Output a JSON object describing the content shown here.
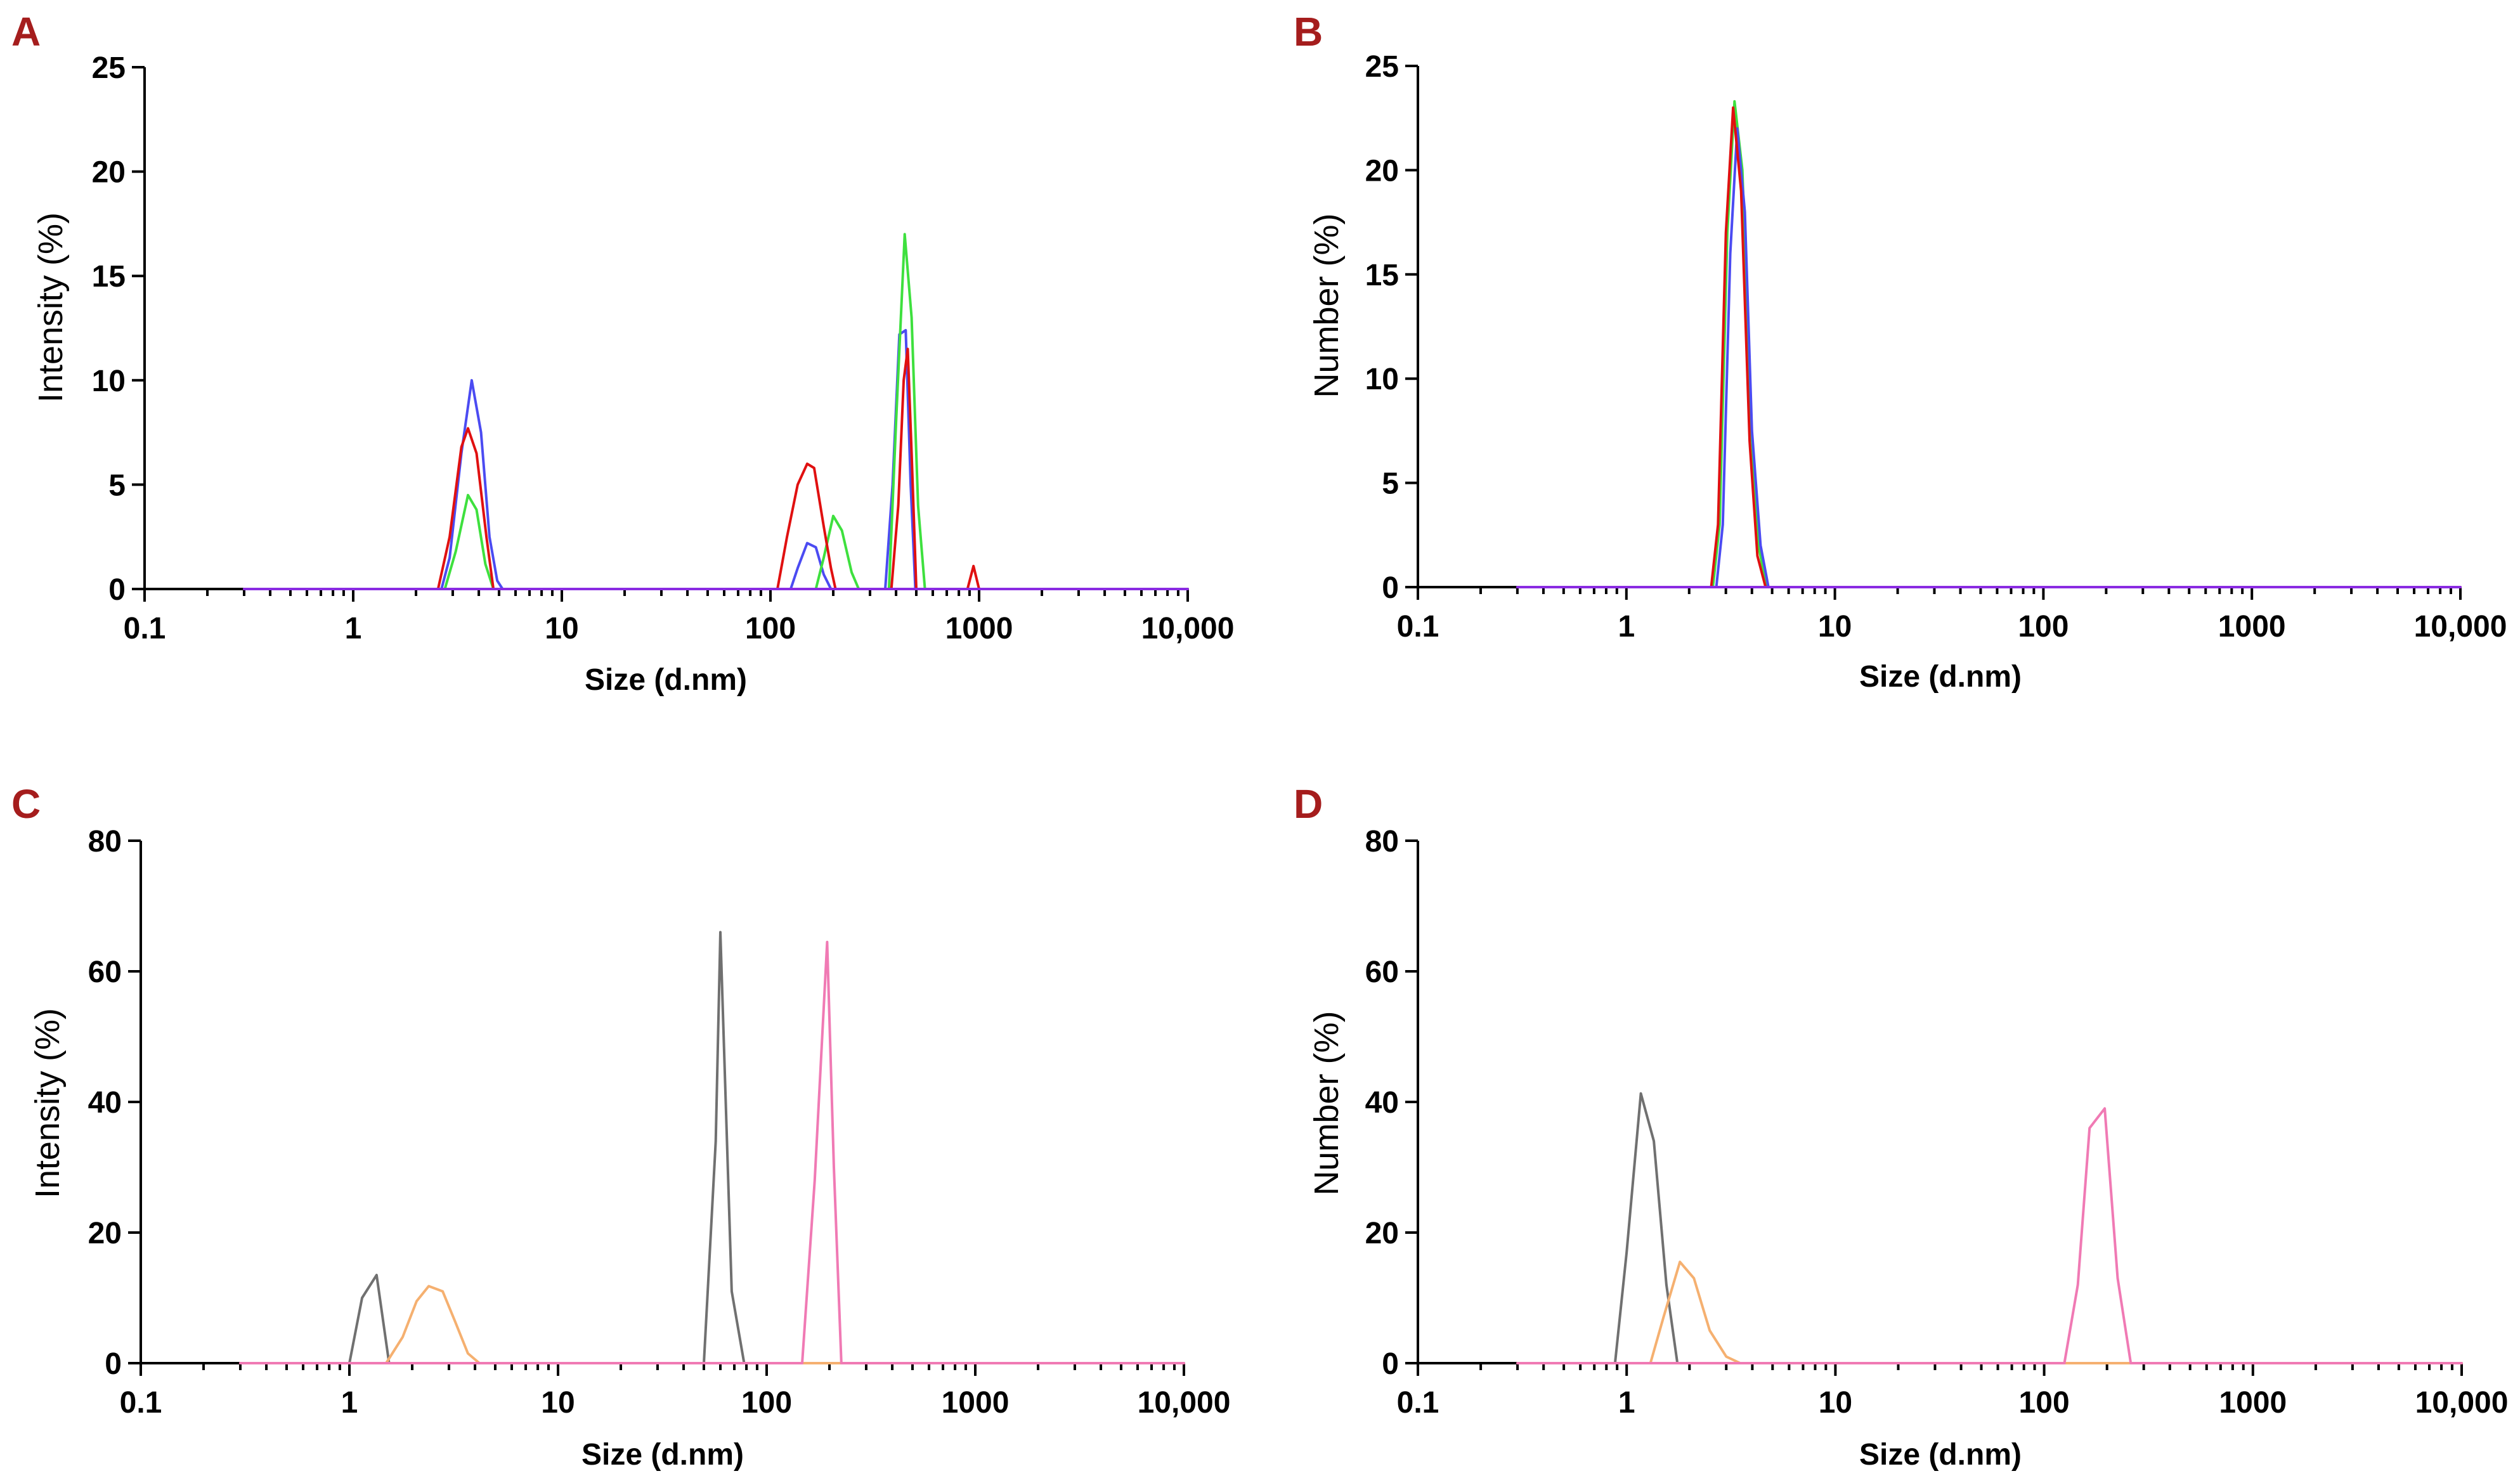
{
  "chart_data": [
    {
      "panel": "A",
      "type": "line",
      "xscale": "log",
      "xlabel": "Size (d.nm)",
      "ylabel": "Intensity (%)",
      "xlim": [
        0.1,
        10000
      ],
      "ylim": [
        0,
        25
      ],
      "xticks": [
        0.1,
        1,
        10,
        100,
        1000,
        10000
      ],
      "xtick_labels": [
        "0.1",
        "1",
        "10",
        "100",
        "1000",
        "10,000"
      ],
      "yticks": [
        0,
        5,
        10,
        15,
        20,
        25
      ],
      "ytick_labels": [
        "0",
        "5",
        "10",
        "15",
        "20",
        "25"
      ],
      "series": [
        {
          "name": "blue",
          "color": "#4b4bf2",
          "points": [
            [
              0.3,
              0
            ],
            [
              2.65,
              0
            ],
            [
              2.9,
              1.5
            ],
            [
              3.3,
              6.5
            ],
            [
              3.7,
              10
            ],
            [
              4.1,
              7.5
            ],
            [
              4.5,
              2.5
            ],
            [
              4.9,
              0.4
            ],
            [
              5.2,
              0
            ],
            [
              125,
              0
            ],
            [
              135,
              1
            ],
            [
              150,
              2.2
            ],
            [
              165,
              2
            ],
            [
              180,
              0.7
            ],
            [
              195,
              0
            ],
            [
              355,
              0
            ],
            [
              385,
              5
            ],
            [
              415,
              12.2
            ],
            [
              445,
              12.4
            ],
            [
              470,
              5
            ],
            [
              495,
              0
            ],
            [
              10000,
              0
            ]
          ]
        },
        {
          "name": "green",
          "color": "#3ee03e",
          "points": [
            [
              0.3,
              0
            ],
            [
              2.75,
              0
            ],
            [
              3.1,
              1.8
            ],
            [
              3.55,
              4.5
            ],
            [
              3.9,
              3.8
            ],
            [
              4.3,
              1.2
            ],
            [
              4.7,
              0
            ],
            [
              165,
              0
            ],
            [
              180,
              1.5
            ],
            [
              200,
              3.5
            ],
            [
              220,
              2.8
            ],
            [
              245,
              0.8
            ],
            [
              265,
              0
            ],
            [
              370,
              0
            ],
            [
              400,
              8
            ],
            [
              440,
              17
            ],
            [
              475,
              13
            ],
            [
              510,
              4
            ],
            [
              550,
              0
            ],
            [
              10000,
              0
            ]
          ]
        },
        {
          "name": "red",
          "color": "#e01010",
          "points": [
            [
              0.3,
              0
            ],
            [
              2.55,
              0
            ],
            [
              2.9,
              2.5
            ],
            [
              3.3,
              6.8
            ],
            [
              3.55,
              7.7
            ],
            [
              3.9,
              6.5
            ],
            [
              4.35,
              2.5
            ],
            [
              4.7,
              0
            ],
            [
              108,
              0
            ],
            [
              120,
              2.5
            ],
            [
              135,
              5
            ],
            [
              150,
              6
            ],
            [
              162,
              5.8
            ],
            [
              180,
              3
            ],
            [
              195,
              1
            ],
            [
              205,
              0
            ],
            [
              380,
              0
            ],
            [
              410,
              4
            ],
            [
              435,
              10
            ],
            [
              455,
              11.5
            ],
            [
              475,
              6.5
            ],
            [
              500,
              0
            ],
            [
              880,
              0
            ],
            [
              940,
              1.1
            ],
            [
              1000,
              0
            ],
            [
              10000,
              0
            ]
          ]
        },
        {
          "name": "purple",
          "color": "#8a2be2",
          "points": [
            [
              0.3,
              0
            ],
            [
              2.5,
              0
            ],
            [
              10000,
              0
            ]
          ]
        }
      ]
    },
    {
      "panel": "B",
      "type": "line",
      "xscale": "log",
      "xlabel": "Size (d.nm)",
      "ylabel": "Number (%)",
      "xlim": [
        0.1,
        10000
      ],
      "ylim": [
        0,
        25
      ],
      "xticks": [
        0.1,
        1,
        10,
        100,
        1000,
        10000
      ],
      "xtick_labels": [
        "0.1",
        "1",
        "10",
        "100",
        "1000",
        "10,000"
      ],
      "yticks": [
        0,
        5,
        10,
        15,
        20,
        25
      ],
      "ytick_labels": [
        "0",
        "5",
        "10",
        "15",
        "20",
        "25"
      ],
      "series": [
        {
          "name": "green",
          "color": "#3ee03e",
          "points": [
            [
              0.3,
              0
            ],
            [
              2.6,
              0
            ],
            [
              2.8,
              3
            ],
            [
              3.05,
              17
            ],
            [
              3.3,
              23.3
            ],
            [
              3.6,
              20
            ],
            [
              3.95,
              8
            ],
            [
              4.3,
              2
            ],
            [
              4.7,
              0
            ],
            [
              10000,
              0
            ]
          ]
        },
        {
          "name": "blue",
          "color": "#4b4bf2",
          "points": [
            [
              0.3,
              0
            ],
            [
              2.7,
              0
            ],
            [
              2.9,
              3
            ],
            [
              3.15,
              16
            ],
            [
              3.4,
              22
            ],
            [
              3.7,
              18
            ],
            [
              4.0,
              7.5
            ],
            [
              4.4,
              2
            ],
            [
              4.8,
              0
            ],
            [
              10000,
              0
            ]
          ]
        },
        {
          "name": "red",
          "color": "#e01010",
          "points": [
            [
              0.3,
              0
            ],
            [
              2.55,
              0
            ],
            [
              2.75,
              3
            ],
            [
              3.0,
              17
            ],
            [
              3.25,
              23
            ],
            [
              3.55,
              19
            ],
            [
              3.9,
              7
            ],
            [
              4.25,
              1.5
            ],
            [
              4.65,
              0
            ],
            [
              10000,
              0
            ]
          ]
        },
        {
          "name": "purple",
          "color": "#8a2be2",
          "points": [
            [
              0.3,
              0
            ],
            [
              10000,
              0
            ]
          ]
        }
      ]
    },
    {
      "panel": "C",
      "type": "line",
      "xscale": "log",
      "xlabel": "Size (d.nm)",
      "ylabel": "Intensity (%)",
      "xlim": [
        0.1,
        10000
      ],
      "ylim": [
        0,
        80
      ],
      "xticks": [
        0.1,
        1,
        10,
        100,
        1000,
        10000
      ],
      "xtick_labels": [
        "0.1",
        "1",
        "10",
        "100",
        "1000",
        "10,000"
      ],
      "yticks": [
        0,
        20,
        40,
        60,
        80
      ],
      "ytick_labels": [
        "0",
        "20",
        "40",
        "60",
        "80"
      ],
      "series": [
        {
          "name": "gray",
          "color": "#707070",
          "points": [
            [
              0.3,
              0
            ],
            [
              1.0,
              0
            ],
            [
              1.15,
              10
            ],
            [
              1.35,
              13.5
            ],
            [
              1.55,
              0
            ],
            [
              10000,
              0
            ]
          ]
        },
        {
          "name": "orange",
          "color": "#f5b070",
          "points": [
            [
              0.3,
              0
            ],
            [
              1.5,
              0
            ],
            [
              1.8,
              4
            ],
            [
              2.1,
              9.5
            ],
            [
              2.4,
              11.8
            ],
            [
              2.8,
              11
            ],
            [
              3.2,
              6.5
            ],
            [
              3.7,
              1.5
            ],
            [
              4.2,
              0
            ],
            [
              10000,
              0
            ]
          ]
        },
        {
          "name": "gray2",
          "color": "#707070",
          "points": [
            [
              50,
              0
            ],
            [
              57,
              34
            ],
            [
              60,
              66
            ],
            [
              68,
              11
            ],
            [
              78,
              0
            ]
          ]
        },
        {
          "name": "pink",
          "color": "#f07ab4",
          "points": [
            [
              0.3,
              0
            ],
            [
              148,
              0
            ],
            [
              170,
              28
            ],
            [
              195,
              64.5
            ],
            [
              210,
              30
            ],
            [
              228,
              0
            ],
            [
              10000,
              0
            ]
          ]
        }
      ]
    },
    {
      "panel": "D",
      "type": "line",
      "xscale": "log",
      "xlabel": "Size (d.nm)",
      "ylabel": "Number (%)",
      "xlim": [
        0.1,
        10000
      ],
      "ylim": [
        0,
        80
      ],
      "xticks": [
        0.1,
        1,
        10,
        100,
        1000,
        10000
      ],
      "xtick_labels": [
        "0.1",
        "1",
        "10",
        "100",
        "1000",
        "10,000"
      ],
      "yticks": [
        0,
        20,
        40,
        60,
        80
      ],
      "ytick_labels": [
        "0",
        "20",
        "40",
        "60",
        "80"
      ],
      "series": [
        {
          "name": "gray",
          "color": "#707070",
          "points": [
            [
              0.3,
              0
            ],
            [
              0.88,
              0
            ],
            [
              1.0,
              17
            ],
            [
              1.17,
              41.3
            ],
            [
              1.35,
              34
            ],
            [
              1.55,
              12
            ],
            [
              1.75,
              0
            ],
            [
              10000,
              0
            ]
          ]
        },
        {
          "name": "orange",
          "color": "#f5b070",
          "points": [
            [
              0.3,
              0
            ],
            [
              1.3,
              0
            ],
            [
              1.5,
              7
            ],
            [
              1.8,
              15.5
            ],
            [
              2.1,
              13
            ],
            [
              2.5,
              5
            ],
            [
              3.0,
              1
            ],
            [
              3.5,
              0
            ],
            [
              10000,
              0
            ]
          ]
        },
        {
          "name": "pink",
          "color": "#f07ab4",
          "points": [
            [
              0.3,
              0
            ],
            [
              125,
              0
            ],
            [
              145,
              12
            ],
            [
              165,
              36
            ],
            [
              195,
              39
            ],
            [
              225,
              13
            ],
            [
              260,
              0
            ],
            [
              10000,
              0
            ]
          ]
        }
      ]
    }
  ]
}
